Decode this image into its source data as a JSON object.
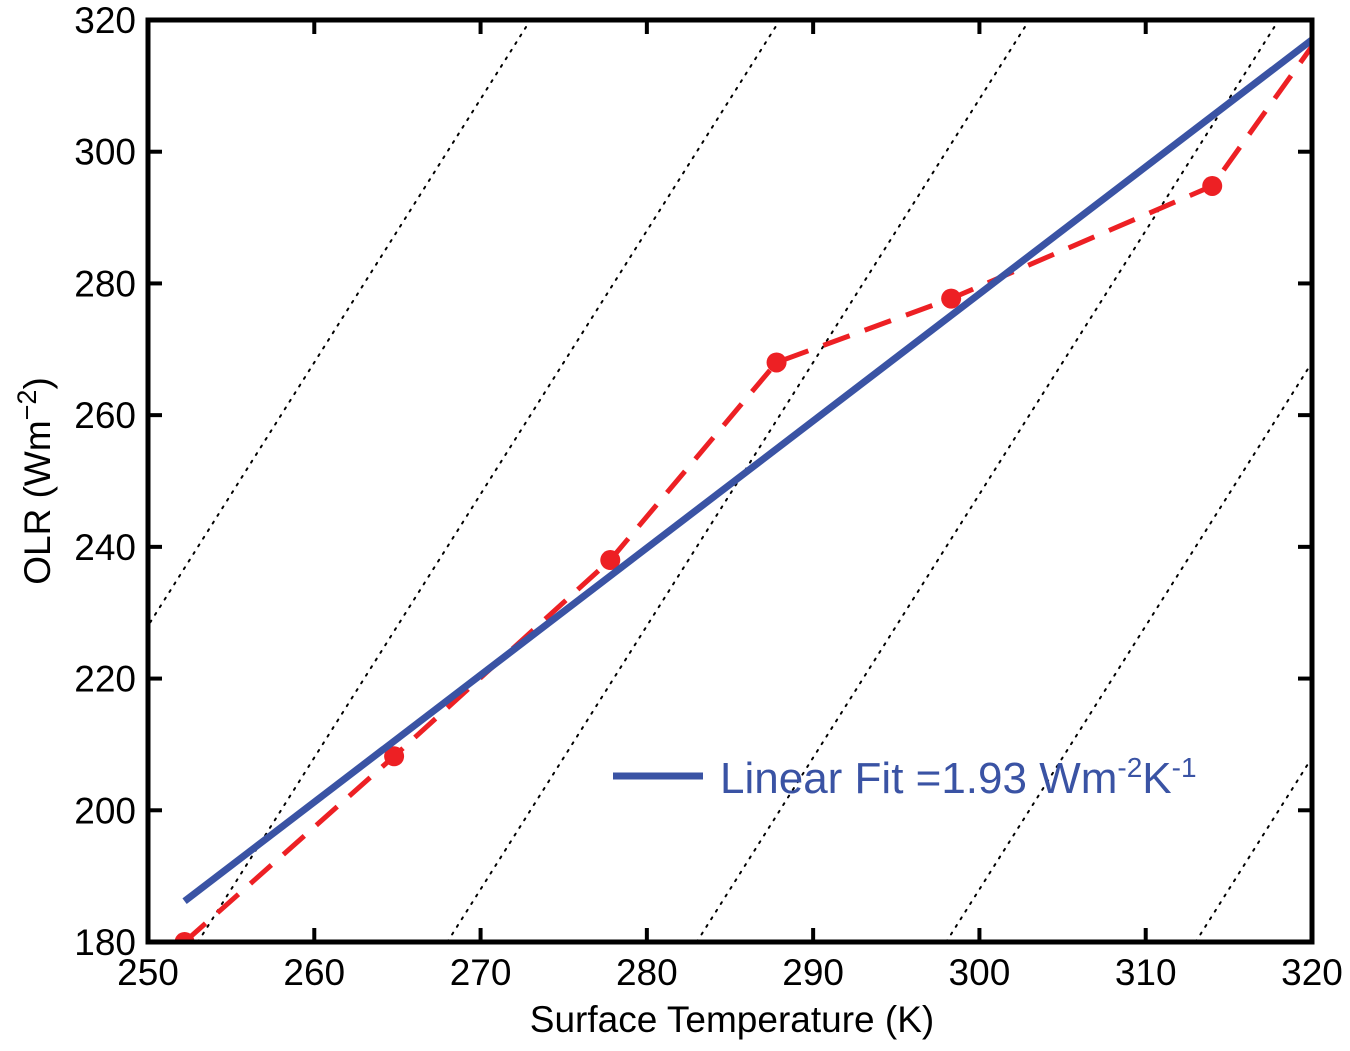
{
  "chart_data": {
    "type": "line",
    "xlabel": "Surface Temperature (K)",
    "ylabel": {
      "base": "OLR (Wm",
      "sup": "−2",
      "end": ")"
    },
    "xlim": [
      250,
      320
    ],
    "ylim": [
      180,
      320
    ],
    "x_ticks": [
      250,
      260,
      270,
      280,
      290,
      300,
      310,
      320
    ],
    "y_ticks": [
      180,
      200,
      220,
      240,
      260,
      280,
      300,
      320
    ],
    "grid": false,
    "series": [
      {
        "name": "",
        "style": "dashed-markers",
        "color": "#ed2024",
        "x": [
          252.2,
          264.8,
          277.8,
          287.8,
          298.3,
          314.0,
          320.0
        ],
        "y": [
          180.0,
          208.2,
          238.0,
          268.0,
          277.7,
          294.8,
          316.0
        ]
      },
      {
        "name": "Linear Fit",
        "style": "solid",
        "color": "#3a53a4",
        "x": [
          252.2,
          320.0
        ],
        "y": [
          186.2,
          317.0
        ]
      }
    ],
    "reference_lines": {
      "style": "dotted",
      "color": "#000000",
      "slope": 4.0,
      "x_at_y180": [
        238,
        253,
        268,
        283,
        298,
        313
      ]
    },
    "legend": {
      "placement": "bottom-right",
      "label_main": "Linear Fit =1.93 Wm",
      "sup1": "-2",
      "mid": "K",
      "sup2": "-1",
      "color": "#3a53a4"
    }
  }
}
